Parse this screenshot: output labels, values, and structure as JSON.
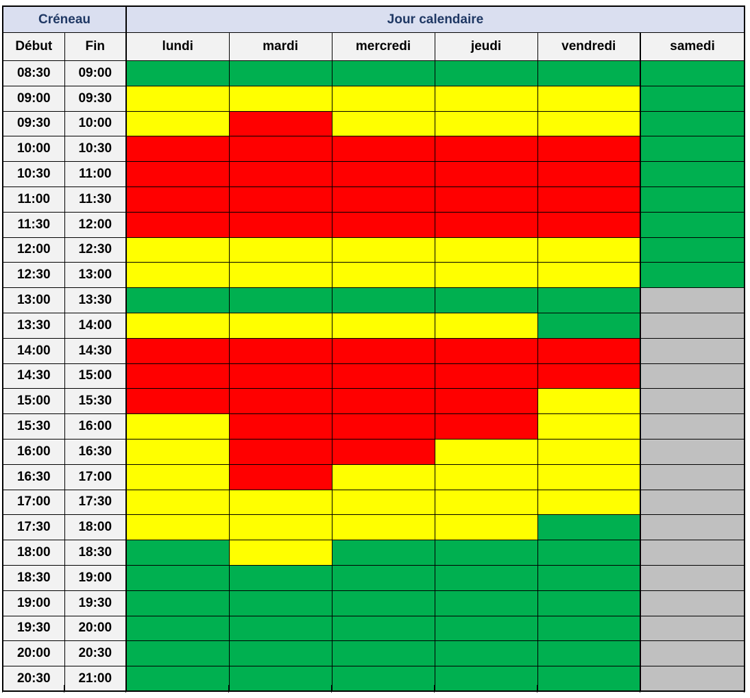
{
  "table": {
    "header_group": {
      "creneau": "Créneau",
      "jour": "Jour calendaire"
    },
    "columns": {
      "debut": "Début",
      "fin": "Fin"
    }
  },
  "colors": {
    "header_bg": "#dadff0",
    "header_text": "#1f3864",
    "label_bg": "#f2f2f2",
    "border": "#000000",
    "green": "#00b050",
    "yellow": "#ffff00",
    "red": "#ff0000",
    "gray": "#c0c0c0"
  },
  "chart_data": {
    "type": "heatmap",
    "title": "Jour calendaire",
    "row_axis_label": "Créneau",
    "columns": [
      "lundi",
      "mardi",
      "mercredi",
      "jeudi",
      "vendredi",
      "samedi"
    ],
    "color_map": {
      "green": "#00b050",
      "yellow": "#ffff00",
      "red": "#ff0000",
      "gray": "#c0c0c0"
    },
    "rows": [
      {
        "debut": "08:30",
        "fin": "09:00",
        "cells": [
          "green",
          "green",
          "green",
          "green",
          "green",
          "green"
        ]
      },
      {
        "debut": "09:00",
        "fin": "09:30",
        "cells": [
          "yellow",
          "yellow",
          "yellow",
          "yellow",
          "yellow",
          "green"
        ]
      },
      {
        "debut": "09:30",
        "fin": "10:00",
        "cells": [
          "yellow",
          "red",
          "yellow",
          "yellow",
          "yellow",
          "green"
        ]
      },
      {
        "debut": "10:00",
        "fin": "10:30",
        "cells": [
          "red",
          "red",
          "red",
          "red",
          "red",
          "green"
        ]
      },
      {
        "debut": "10:30",
        "fin": "11:00",
        "cells": [
          "red",
          "red",
          "red",
          "red",
          "red",
          "green"
        ]
      },
      {
        "debut": "11:00",
        "fin": "11:30",
        "cells": [
          "red",
          "red",
          "red",
          "red",
          "red",
          "green"
        ]
      },
      {
        "debut": "11:30",
        "fin": "12:00",
        "cells": [
          "red",
          "red",
          "red",
          "red",
          "red",
          "green"
        ]
      },
      {
        "debut": "12:00",
        "fin": "12:30",
        "cells": [
          "yellow",
          "yellow",
          "yellow",
          "yellow",
          "yellow",
          "green"
        ]
      },
      {
        "debut": "12:30",
        "fin": "13:00",
        "cells": [
          "yellow",
          "yellow",
          "yellow",
          "yellow",
          "yellow",
          "green"
        ]
      },
      {
        "debut": "13:00",
        "fin": "13:30",
        "cells": [
          "green",
          "green",
          "green",
          "green",
          "green",
          "gray"
        ]
      },
      {
        "debut": "13:30",
        "fin": "14:00",
        "cells": [
          "yellow",
          "yellow",
          "yellow",
          "yellow",
          "green",
          "gray"
        ]
      },
      {
        "debut": "14:00",
        "fin": "14:30",
        "cells": [
          "red",
          "red",
          "red",
          "red",
          "red",
          "gray"
        ]
      },
      {
        "debut": "14:30",
        "fin": "15:00",
        "cells": [
          "red",
          "red",
          "red",
          "red",
          "red",
          "gray"
        ]
      },
      {
        "debut": "15:00",
        "fin": "15:30",
        "cells": [
          "red",
          "red",
          "red",
          "red",
          "yellow",
          "gray"
        ]
      },
      {
        "debut": "15:30",
        "fin": "16:00",
        "cells": [
          "yellow",
          "red",
          "red",
          "red",
          "yellow",
          "gray"
        ]
      },
      {
        "debut": "16:00",
        "fin": "16:30",
        "cells": [
          "yellow",
          "red",
          "red",
          "yellow",
          "yellow",
          "gray"
        ]
      },
      {
        "debut": "16:30",
        "fin": "17:00",
        "cells": [
          "yellow",
          "red",
          "yellow",
          "yellow",
          "yellow",
          "gray"
        ]
      },
      {
        "debut": "17:00",
        "fin": "17:30",
        "cells": [
          "yellow",
          "yellow",
          "yellow",
          "yellow",
          "yellow",
          "gray"
        ]
      },
      {
        "debut": "17:30",
        "fin": "18:00",
        "cells": [
          "yellow",
          "yellow",
          "yellow",
          "yellow",
          "green",
          "gray"
        ]
      },
      {
        "debut": "18:00",
        "fin": "18:30",
        "cells": [
          "green",
          "yellow",
          "green",
          "green",
          "green",
          "gray"
        ]
      },
      {
        "debut": "18:30",
        "fin": "19:00",
        "cells": [
          "green",
          "green",
          "green",
          "green",
          "green",
          "gray"
        ]
      },
      {
        "debut": "19:00",
        "fin": "19:30",
        "cells": [
          "green",
          "green",
          "green",
          "green",
          "green",
          "gray"
        ]
      },
      {
        "debut": "19:30",
        "fin": "20:00",
        "cells": [
          "green",
          "green",
          "green",
          "green",
          "green",
          "gray"
        ]
      },
      {
        "debut": "20:00",
        "fin": "20:30",
        "cells": [
          "green",
          "green",
          "green",
          "green",
          "green",
          "gray"
        ]
      },
      {
        "debut": "20:30",
        "fin": "21:00",
        "cells": [
          "green",
          "green",
          "green",
          "green",
          "green",
          "gray"
        ]
      }
    ]
  }
}
